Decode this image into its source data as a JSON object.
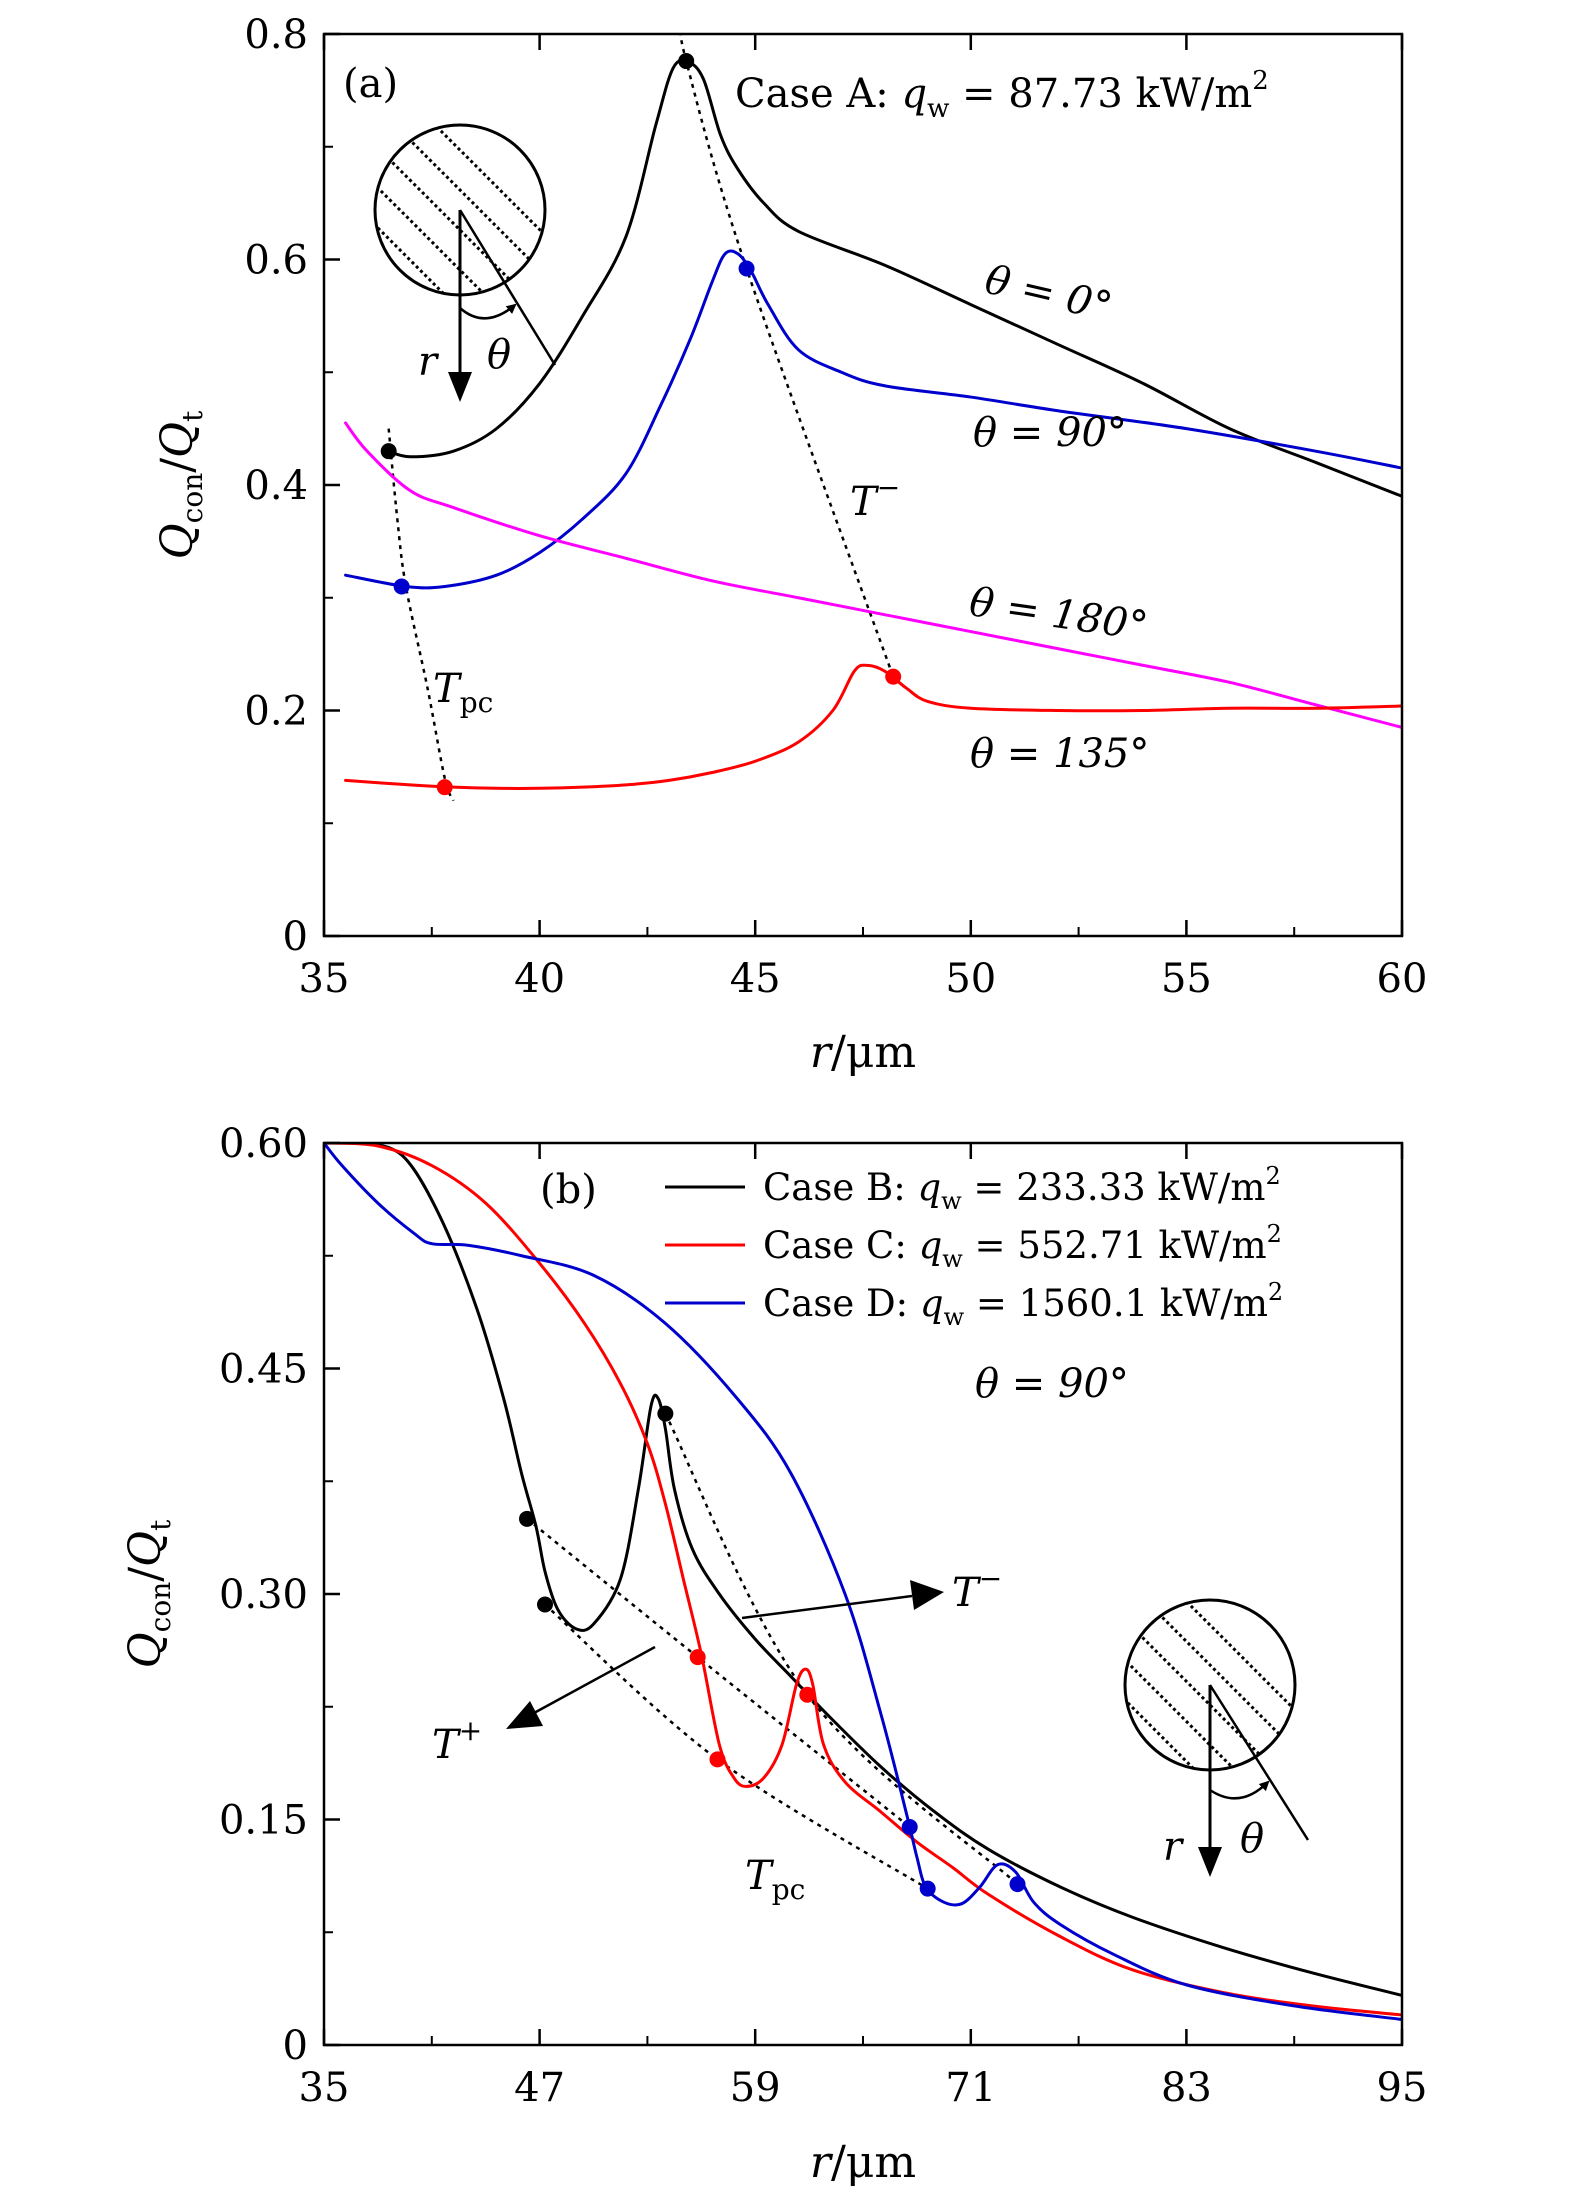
{
  "figure": {
    "panel_a": {
      "panel_label": "(a)",
      "case_label": "Case A: q_w = 87.73 kW/m²",
      "case_prefix": "Case A: ",
      "case_q": "q",
      "case_sub": "w",
      "case_eq": " = 87.73 kW/m",
      "case_sup": "2",
      "inset_r": "r",
      "inset_theta": "θ",
      "tpc_T": "T",
      "tpc_sub": "pc",
      "tminus_T": "T",
      "tminus_sup": "−",
      "labels_theta": {
        "t0": "θ = 0°",
        "t90": "θ = 90°",
        "t180": "θ = 180°",
        "t135": "θ = 135°"
      }
    },
    "panel_b": {
      "panel_label": "(b)",
      "theta_label": "θ = 90°",
      "inset_r": "r",
      "inset_theta": "θ",
      "tminus_T": "T",
      "tminus_sup": "−",
      "tplus_T": "T",
      "tplus_sup": "+",
      "tpc_T": "T",
      "tpc_sub": "pc",
      "legend": [
        {
          "prefix": "Case B: ",
          "q": "q",
          "sub": "w",
          "eq": " = 233.33 kW/m",
          "sup": "2",
          "color": "#000000"
        },
        {
          "prefix": "Case C: ",
          "q": "q",
          "sub": "w",
          "eq": " = 552.71 kW/m",
          "sup": "2",
          "color": "#ff0000"
        },
        {
          "prefix": "Case D: ",
          "q": "q",
          "sub": "w",
          "eq": " = 1560.1 kW/m",
          "sup": "2",
          "color": "#0000cc"
        }
      ]
    }
  },
  "chart_data": [
    {
      "type": "line",
      "title": "(a) Case A: q_w = 87.73 kW/m²",
      "xlabel": "r/μm",
      "ylabel": "Q_con/Q_t",
      "xlim": [
        35,
        60
      ],
      "ylim": [
        0,
        0.8
      ],
      "xticks": [
        35,
        40,
        45,
        50,
        55,
        60
      ],
      "yticks": [
        0,
        0.2,
        0.4,
        0.6,
        0.8
      ],
      "xtick_labels": [
        "35",
        "40",
        "45",
        "50",
        "55",
        "60"
      ],
      "ytick_labels": [
        "0",
        "0.2",
        "0.4",
        "0.6",
        "0.8"
      ],
      "series": [
        {
          "name": "θ = 0°",
          "color": "#000000",
          "points": [
            [
              36.5,
              0.43
            ],
            [
              37.0,
              0.425
            ],
            [
              38.0,
              0.43
            ],
            [
              39.0,
              0.45
            ],
            [
              40.0,
              0.49
            ],
            [
              41.0,
              0.55
            ],
            [
              42.0,
              0.62
            ],
            [
              42.7,
              0.72
            ],
            [
              43.1,
              0.77
            ],
            [
              43.45,
              0.775
            ],
            [
              43.8,
              0.76
            ],
            [
              44.2,
              0.71
            ],
            [
              44.6,
              0.68
            ],
            [
              45.2,
              0.65
            ],
            [
              46.0,
              0.625
            ],
            [
              48.0,
              0.595
            ],
            [
              50.0,
              0.56
            ],
            [
              52.0,
              0.525
            ],
            [
              54.0,
              0.49
            ],
            [
              56.0,
              0.45
            ],
            [
              58.0,
              0.42
            ],
            [
              60.0,
              0.39
            ]
          ]
        },
        {
          "name": "θ = 90°",
          "color": "#0000cc",
          "points": [
            [
              35.5,
              0.32
            ],
            [
              36.9,
              0.31
            ],
            [
              37.8,
              0.31
            ],
            [
              39.0,
              0.32
            ],
            [
              40.0,
              0.34
            ],
            [
              41.0,
              0.37
            ],
            [
              42.0,
              0.41
            ],
            [
              42.8,
              0.47
            ],
            [
              43.5,
              0.53
            ],
            [
              44.0,
              0.58
            ],
            [
              44.3,
              0.605
            ],
            [
              44.6,
              0.605
            ],
            [
              44.9,
              0.59
            ],
            [
              45.3,
              0.56
            ],
            [
              46.0,
              0.52
            ],
            [
              47.0,
              0.5
            ],
            [
              48.0,
              0.488
            ],
            [
              50.0,
              0.478
            ],
            [
              52.0,
              0.466
            ],
            [
              55.0,
              0.45
            ],
            [
              58.0,
              0.43
            ],
            [
              60.0,
              0.415
            ]
          ]
        },
        {
          "name": "θ = 180°",
          "color": "#ff00ff",
          "points": [
            [
              35.5,
              0.455
            ],
            [
              36.0,
              0.43
            ],
            [
              37.0,
              0.395
            ],
            [
              38.0,
              0.38
            ],
            [
              40.0,
              0.355
            ],
            [
              42.0,
              0.335
            ],
            [
              44.0,
              0.315
            ],
            [
              46.0,
              0.3
            ],
            [
              48.0,
              0.285
            ],
            [
              50.0,
              0.27
            ],
            [
              52.0,
              0.255
            ],
            [
              54.0,
              0.24
            ],
            [
              56.0,
              0.225
            ],
            [
              58.0,
              0.205
            ],
            [
              60.0,
              0.185
            ]
          ]
        },
        {
          "name": "θ = 135°",
          "color": "#ff0000",
          "points": [
            [
              35.5,
              0.138
            ],
            [
              37.0,
              0.134
            ],
            [
              38.0,
              0.132
            ],
            [
              39.0,
              0.131
            ],
            [
              40.0,
              0.131
            ],
            [
              41.0,
              0.132
            ],
            [
              42.0,
              0.134
            ],
            [
              43.0,
              0.138
            ],
            [
              44.0,
              0.145
            ],
            [
              45.0,
              0.155
            ],
            [
              46.0,
              0.172
            ],
            [
              46.8,
              0.2
            ],
            [
              47.3,
              0.235
            ],
            [
              47.6,
              0.24
            ],
            [
              48.0,
              0.235
            ],
            [
              48.5,
              0.22
            ],
            [
              49.0,
              0.208
            ],
            [
              50.0,
              0.202
            ],
            [
              52.0,
              0.2
            ],
            [
              54.0,
              0.2
            ],
            [
              56.0,
              0.202
            ],
            [
              58.0,
              0.202
            ],
            [
              60.0,
              0.204
            ]
          ]
        }
      ],
      "markers": [
        {
          "series": "θ = 0°",
          "x": 36.5,
          "y": 0.43,
          "color": "#000000"
        },
        {
          "series": "θ = 0°",
          "x": 43.4,
          "y": 0.776,
          "color": "#000000"
        },
        {
          "series": "θ = 90°",
          "x": 36.8,
          "y": 0.31,
          "color": "#0000cc"
        },
        {
          "series": "θ = 90°",
          "x": 44.8,
          "y": 0.592,
          "color": "#0000cc"
        },
        {
          "series": "θ = 135°",
          "x": 37.8,
          "y": 0.132,
          "color": "#ff0000"
        },
        {
          "series": "θ = 135°",
          "x": 48.2,
          "y": 0.23,
          "color": "#ff0000"
        }
      ],
      "guide_lines": [
        {
          "name": "T_pc",
          "points": [
            [
              36.5,
              0.45
            ],
            [
              36.7,
              0.37
            ],
            [
              36.9,
              0.31
            ],
            [
              37.4,
              0.22
            ],
            [
              37.8,
              0.14
            ],
            [
              38.0,
              0.12
            ]
          ]
        },
        {
          "name": "T^-",
          "points": [
            [
              43.3,
              0.81
            ],
            [
              43.4,
              0.776
            ],
            [
              44.8,
              0.592
            ],
            [
              48.2,
              0.23
            ]
          ]
        }
      ]
    },
    {
      "type": "line",
      "title": "(b) θ = 90°",
      "xlabel": "r/μm",
      "ylabel": "Q_con/Q_t",
      "xlim": [
        35,
        95
      ],
      "ylim": [
        0,
        0.6
      ],
      "xticks": [
        35,
        47,
        59,
        71,
        83,
        95
      ],
      "yticks": [
        0,
        0.15,
        0.3,
        0.45,
        0.6
      ],
      "xtick_labels": [
        "35",
        "47",
        "59",
        "71",
        "83",
        "95"
      ],
      "ytick_labels": [
        "0",
        "0.15",
        "0.30",
        "0.45",
        "0.60"
      ],
      "series": [
        {
          "name": "Case B: q_w = 233.33 kW/m²",
          "color": "#000000",
          "points": [
            [
              36.0,
              0.6
            ],
            [
              37.5,
              0.6
            ],
            [
              39.5,
              0.59
            ],
            [
              41.5,
              0.55
            ],
            [
              43.5,
              0.49
            ],
            [
              45.0,
              0.43
            ],
            [
              46.0,
              0.38
            ],
            [
              46.8,
              0.345
            ],
            [
              47.3,
              0.315
            ],
            [
              48.0,
              0.29
            ],
            [
              49.0,
              0.277
            ],
            [
              50.0,
              0.28
            ],
            [
              51.5,
              0.31
            ],
            [
              52.5,
              0.37
            ],
            [
              53.2,
              0.425
            ],
            [
              53.6,
              0.43
            ],
            [
              54.0,
              0.41
            ],
            [
              54.5,
              0.37
            ],
            [
              55.5,
              0.33
            ],
            [
              57.0,
              0.3
            ],
            [
              59.0,
              0.27
            ],
            [
              61.0,
              0.245
            ],
            [
              63.0,
              0.22
            ],
            [
              66.0,
              0.185
            ],
            [
              69.0,
              0.155
            ],
            [
              72.0,
              0.13
            ],
            [
              76.0,
              0.105
            ],
            [
              80.0,
              0.085
            ],
            [
              85.0,
              0.065
            ],
            [
              90.0,
              0.048
            ],
            [
              95.0,
              0.033
            ]
          ]
        },
        {
          "name": "Case C: q_w = 552.71 kW/m²",
          "color": "#ff0000",
          "points": [
            [
              35.0,
              0.6
            ],
            [
              38.0,
              0.598
            ],
            [
              41.0,
              0.585
            ],
            [
              44.0,
              0.56
            ],
            [
              47.0,
              0.52
            ],
            [
              49.5,
              0.48
            ],
            [
              51.5,
              0.44
            ],
            [
              53.0,
              0.4
            ],
            [
              54.0,
              0.36
            ],
            [
              55.0,
              0.31
            ],
            [
              56.0,
              0.26
            ],
            [
              57.0,
              0.2
            ],
            [
              57.8,
              0.178
            ],
            [
              58.5,
              0.172
            ],
            [
              59.5,
              0.178
            ],
            [
              60.5,
              0.2
            ],
            [
              61.3,
              0.24
            ],
            [
              61.8,
              0.25
            ],
            [
              62.2,
              0.24
            ],
            [
              62.8,
              0.2
            ],
            [
              64.0,
              0.175
            ],
            [
              66.0,
              0.155
            ],
            [
              68.0,
              0.135
            ],
            [
              70.0,
              0.118
            ],
            [
              72.0,
              0.1
            ],
            [
              76.0,
              0.072
            ],
            [
              80.0,
              0.05
            ],
            [
              85.0,
              0.035
            ],
            [
              90.0,
              0.026
            ],
            [
              95.0,
              0.02
            ]
          ]
        },
        {
          "name": "Case D: q_w = 1560.1 kW/m²",
          "color": "#0000cc",
          "points": [
            [
              35.0,
              0.6
            ],
            [
              36.0,
              0.585
            ],
            [
              38.0,
              0.56
            ],
            [
              40.0,
              0.54
            ],
            [
              41.0,
              0.533
            ],
            [
              43.0,
              0.532
            ],
            [
              46.0,
              0.525
            ],
            [
              50.0,
              0.512
            ],
            [
              54.0,
              0.48
            ],
            [
              58.0,
              0.43
            ],
            [
              61.0,
              0.38
            ],
            [
              64.0,
              0.3
            ],
            [
              66.0,
              0.22
            ],
            [
              67.5,
              0.15
            ],
            [
              68.0,
              0.125
            ],
            [
              68.5,
              0.105
            ],
            [
              69.5,
              0.095
            ],
            [
              70.5,
              0.094
            ],
            [
              71.5,
              0.105
            ],
            [
              72.5,
              0.12
            ],
            [
              73.5,
              0.115
            ],
            [
              74.5,
              0.095
            ],
            [
              76.0,
              0.08
            ],
            [
              79.0,
              0.06
            ],
            [
              83.0,
              0.04
            ],
            [
              89.0,
              0.026
            ],
            [
              95.0,
              0.017
            ]
          ]
        }
      ],
      "markers": [
        {
          "series": "Case B",
          "x": 46.3,
          "y": 0.35,
          "color": "#000000"
        },
        {
          "series": "Case B",
          "x": 47.3,
          "y": 0.293,
          "color": "#000000"
        },
        {
          "series": "Case B",
          "x": 54.0,
          "y": 0.42,
          "color": "#000000"
        },
        {
          "series": "Case C",
          "x": 55.8,
          "y": 0.258,
          "color": "#ff0000"
        },
        {
          "series": "Case C",
          "x": 56.9,
          "y": 0.19,
          "color": "#ff0000"
        },
        {
          "series": "Case C",
          "x": 61.9,
          "y": 0.233,
          "color": "#ff0000"
        },
        {
          "series": "Case D",
          "x": 67.6,
          "y": 0.145,
          "color": "#0000cc"
        },
        {
          "series": "Case D",
          "x": 68.6,
          "y": 0.104,
          "color": "#0000cc"
        },
        {
          "series": "Case D",
          "x": 73.6,
          "y": 0.107,
          "color": "#0000cc"
        }
      ],
      "guide_lines": [
        {
          "name": "T^+",
          "points": [
            [
              46.3,
              0.35
            ],
            [
              55.8,
              0.258
            ],
            [
              67.6,
              0.145
            ]
          ]
        },
        {
          "name": "T_pc",
          "points": [
            [
              47.3,
              0.293
            ],
            [
              56.9,
              0.19
            ],
            [
              68.6,
              0.104
            ]
          ]
        },
        {
          "name": "T^-",
          "points": [
            [
              54.0,
              0.42
            ],
            [
              61.9,
              0.233
            ],
            [
              73.6,
              0.107
            ]
          ]
        }
      ]
    }
  ]
}
